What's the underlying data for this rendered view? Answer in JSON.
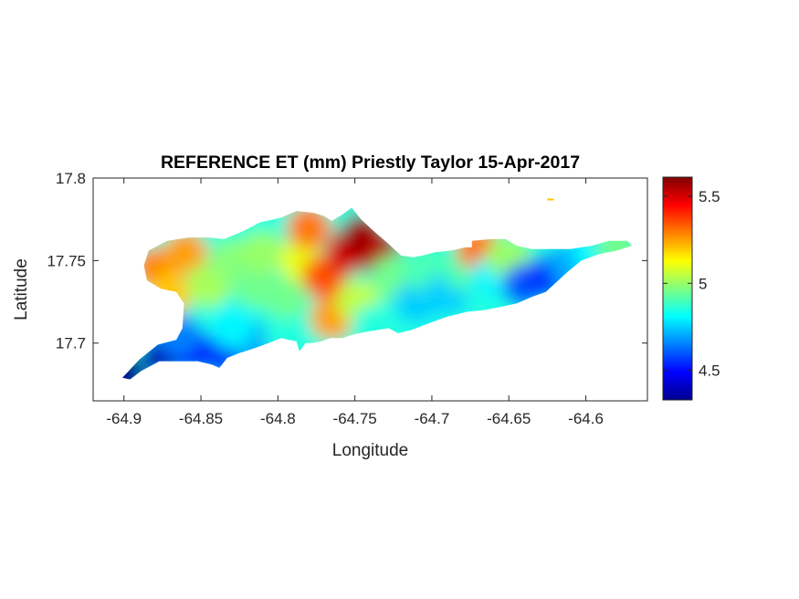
{
  "chart_data": {
    "type": "heatmap",
    "title": "REFERENCE ET (mm) Priestly Taylor 15-Apr-2017",
    "xlabel": "Longitude",
    "ylabel": "Latitude",
    "xlim": [
      -64.92,
      -64.56
    ],
    "ylim": [
      17.665,
      17.8
    ],
    "x_ticks": [
      -64.9,
      -64.85,
      -64.8,
      -64.75,
      -64.7,
      -64.65,
      -64.6
    ],
    "x_tick_labels": [
      "-64.9",
      "-64.85",
      "-64.8",
      "-64.75",
      "-64.7",
      "-64.65",
      "-64.6"
    ],
    "y_ticks": [
      17.7,
      17.75,
      17.8
    ],
    "y_tick_labels": [
      "17.7",
      "17.75",
      "17.8"
    ],
    "colormap": "jet",
    "colorbar": {
      "range": [
        4.33,
        5.61
      ],
      "ticks": [
        4.5,
        5,
        5.5
      ],
      "tick_labels": [
        "4.5",
        "5",
        "5.5"
      ]
    },
    "grid": false,
    "region_outline": [
      [
        -64.901,
        17.679
      ],
      [
        -64.89,
        17.69
      ],
      [
        -64.878,
        17.699
      ],
      [
        -64.866,
        17.702
      ],
      [
        -64.862,
        17.709
      ],
      [
        -64.861,
        17.724
      ],
      [
        -64.866,
        17.731
      ],
      [
        -64.876,
        17.733
      ],
      [
        -64.885,
        17.738
      ],
      [
        -64.887,
        17.747
      ],
      [
        -64.884,
        17.756
      ],
      [
        -64.872,
        17.762
      ],
      [
        -64.858,
        17.764
      ],
      [
        -64.845,
        17.764
      ],
      [
        -64.835,
        17.763
      ],
      [
        -64.822,
        17.768
      ],
      [
        -64.812,
        17.773
      ],
      [
        -64.798,
        17.776
      ],
      [
        -64.788,
        17.78
      ],
      [
        -64.777,
        17.779
      ],
      [
        -64.77,
        17.777
      ],
      [
        -64.765,
        17.774
      ],
      [
        -64.758,
        17.778
      ],
      [
        -64.752,
        17.782
      ],
      [
        -64.746,
        17.775
      ],
      [
        -64.738,
        17.768
      ],
      [
        -64.728,
        17.76
      ],
      [
        -64.72,
        17.753
      ],
      [
        -64.712,
        17.752
      ],
      [
        -64.706,
        17.753
      ],
      [
        -64.698,
        17.755
      ],
      [
        -64.688,
        17.756
      ],
      [
        -64.678,
        17.758
      ],
      [
        -64.674,
        17.758
      ],
      [
        -64.674,
        17.762
      ],
      [
        -64.662,
        17.763
      ],
      [
        -64.652,
        17.763
      ],
      [
        -64.645,
        17.759
      ],
      [
        -64.635,
        17.757
      ],
      [
        -64.625,
        17.757
      ],
      [
        -64.61,
        17.757
      ],
      [
        -64.596,
        17.759
      ],
      [
        -64.585,
        17.762
      ],
      [
        -64.573,
        17.762
      ],
      [
        -64.57,
        17.759
      ],
      [
        -64.58,
        17.756
      ],
      [
        -64.591,
        17.754
      ],
      [
        -64.603,
        17.75
      ],
      [
        -64.612,
        17.743
      ],
      [
        -64.619,
        17.737
      ],
      [
        -64.626,
        17.731
      ],
      [
        -64.635,
        17.728
      ],
      [
        -64.645,
        17.724
      ],
      [
        -64.655,
        17.722
      ],
      [
        -64.666,
        17.72
      ],
      [
        -64.677,
        17.719
      ],
      [
        -64.69,
        17.716
      ],
      [
        -64.702,
        17.712
      ],
      [
        -64.713,
        17.708
      ],
      [
        -64.722,
        17.706
      ],
      [
        -64.728,
        17.709
      ],
      [
        -64.742,
        17.707
      ],
      [
        -64.752,
        17.705
      ],
      [
        -64.758,
        17.703
      ],
      [
        -64.766,
        17.703
      ],
      [
        -64.772,
        17.701
      ],
      [
        -64.778,
        17.7
      ],
      [
        -64.782,
        17.7
      ],
      [
        -64.786,
        17.695
      ],
      [
        -64.788,
        17.701
      ],
      [
        -64.793,
        17.702
      ],
      [
        -64.798,
        17.703
      ],
      [
        -64.806,
        17.7
      ],
      [
        -64.815,
        17.697
      ],
      [
        -64.825,
        17.694
      ],
      [
        -64.833,
        17.691
      ],
      [
        -64.838,
        17.685
      ],
      [
        -64.843,
        17.687
      ],
      [
        -64.852,
        17.689
      ],
      [
        -64.863,
        17.689
      ],
      [
        -64.877,
        17.689
      ],
      [
        -64.889,
        17.683
      ],
      [
        -64.896,
        17.678
      ]
    ],
    "islet": [
      -64.623,
      17.787
    ],
    "sample_points": [
      {
        "lon": -64.9,
        "lat": 17.68,
        "value": 4.35
      },
      {
        "lon": -64.875,
        "lat": 17.693,
        "value": 4.4
      },
      {
        "lon": -64.855,
        "lat": 17.695,
        "value": 4.5
      },
      {
        "lon": -64.835,
        "lat": 17.693,
        "value": 4.55
      },
      {
        "lon": -64.815,
        "lat": 17.7,
        "value": 4.7
      },
      {
        "lon": -64.795,
        "lat": 17.705,
        "value": 4.85
      },
      {
        "lon": -64.865,
        "lat": 17.705,
        "value": 4.65
      },
      {
        "lon": -64.83,
        "lat": 17.71,
        "value": 4.8
      },
      {
        "lon": -64.88,
        "lat": 17.745,
        "value": 5.28
      },
      {
        "lon": -64.87,
        "lat": 17.73,
        "value": 5.2
      },
      {
        "lon": -64.86,
        "lat": 17.755,
        "value": 5.25
      },
      {
        "lon": -64.845,
        "lat": 17.735,
        "value": 5.02
      },
      {
        "lon": -64.83,
        "lat": 17.75,
        "value": 4.98
      },
      {
        "lon": -64.815,
        "lat": 17.735,
        "value": 4.95
      },
      {
        "lon": -64.81,
        "lat": 17.755,
        "value": 5.0
      },
      {
        "lon": -64.795,
        "lat": 17.728,
        "value": 4.95
      },
      {
        "lon": -64.785,
        "lat": 17.75,
        "value": 5.1
      },
      {
        "lon": -64.78,
        "lat": 17.77,
        "value": 5.3
      },
      {
        "lon": -64.77,
        "lat": 17.74,
        "value": 5.35
      },
      {
        "lon": -64.765,
        "lat": 17.715,
        "value": 5.25
      },
      {
        "lon": -64.755,
        "lat": 17.755,
        "value": 5.5
      },
      {
        "lon": -64.745,
        "lat": 17.765,
        "value": 5.58
      },
      {
        "lon": -64.735,
        "lat": 17.755,
        "value": 5.55
      },
      {
        "lon": -64.748,
        "lat": 17.725,
        "value": 5.05
      },
      {
        "lon": -64.738,
        "lat": 17.71,
        "value": 4.85
      },
      {
        "lon": -64.725,
        "lat": 17.74,
        "value": 4.95
      },
      {
        "lon": -64.71,
        "lat": 17.725,
        "value": 4.75
      },
      {
        "lon": -64.705,
        "lat": 17.745,
        "value": 4.9
      },
      {
        "lon": -64.69,
        "lat": 17.73,
        "value": 4.75
      },
      {
        "lon": -64.68,
        "lat": 17.745,
        "value": 4.9
      },
      {
        "lon": -64.67,
        "lat": 17.757,
        "value": 5.3
      },
      {
        "lon": -64.66,
        "lat": 17.74,
        "value": 4.8
      },
      {
        "lon": -64.65,
        "lat": 17.752,
        "value": 5.0
      },
      {
        "lon": -64.64,
        "lat": 17.735,
        "value": 4.6
      },
      {
        "lon": -64.625,
        "lat": 17.74,
        "value": 4.55
      },
      {
        "lon": -64.61,
        "lat": 17.748,
        "value": 4.7
      },
      {
        "lon": -64.595,
        "lat": 17.754,
        "value": 4.8
      },
      {
        "lon": -64.58,
        "lat": 17.758,
        "value": 4.95
      },
      {
        "lon": -64.623,
        "lat": 17.787,
        "value": 5.2
      }
    ]
  }
}
